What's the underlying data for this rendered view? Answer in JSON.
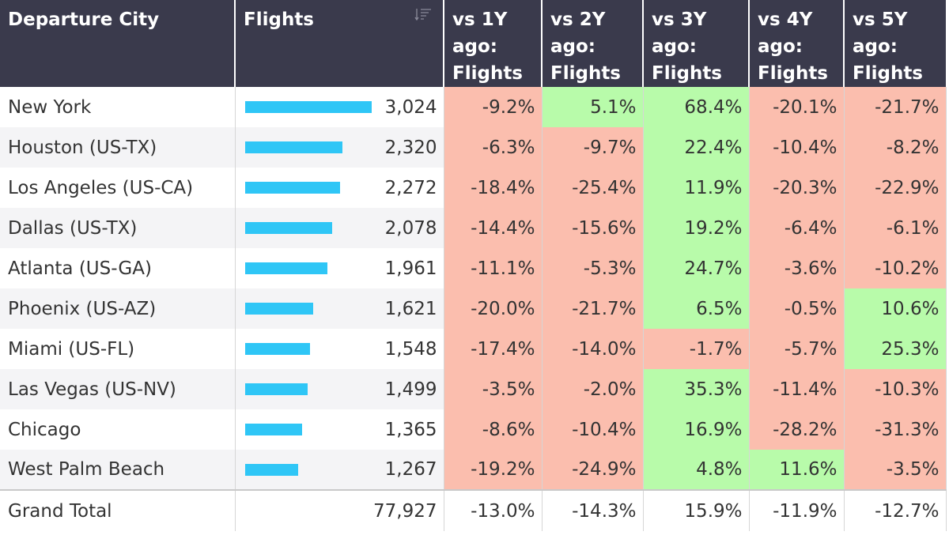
{
  "table": {
    "headers": [
      "Departure City",
      "Flights",
      "vs 1Y ago: Flights",
      "vs 2Y ago: Flights",
      "vs 3Y ago: Flights",
      "vs 4Y ago: Flights",
      "vs 5Y ago: Flights"
    ],
    "max_flights": 3024,
    "rows": [
      {
        "city": "New York",
        "flights": "3,024",
        "flights_value": 3024,
        "changes": [
          "-9.2%",
          "5.1%",
          "68.4%",
          "-20.1%",
          "-21.7%"
        ]
      },
      {
        "city": "Houston (US-TX)",
        "flights": "2,320",
        "flights_value": 2320,
        "changes": [
          "-6.3%",
          "-9.7%",
          "22.4%",
          "-10.4%",
          "-8.2%"
        ]
      },
      {
        "city": "Los Angeles (US-CA)",
        "flights": "2,272",
        "flights_value": 2272,
        "changes": [
          "-18.4%",
          "-25.4%",
          "11.9%",
          "-20.3%",
          "-22.9%"
        ]
      },
      {
        "city": "Dallas (US-TX)",
        "flights": "2,078",
        "flights_value": 2078,
        "changes": [
          "-14.4%",
          "-15.6%",
          "19.2%",
          "-6.4%",
          "-6.1%"
        ]
      },
      {
        "city": "Atlanta (US-GA)",
        "flights": "1,961",
        "flights_value": 1961,
        "changes": [
          "-11.1%",
          "-5.3%",
          "24.7%",
          "-3.6%",
          "-10.2%"
        ]
      },
      {
        "city": "Phoenix (US-AZ)",
        "flights": "1,621",
        "flights_value": 1621,
        "changes": [
          "-20.0%",
          "-21.7%",
          "6.5%",
          "-0.5%",
          "10.6%"
        ]
      },
      {
        "city": "Miami (US-FL)",
        "flights": "1,548",
        "flights_value": 1548,
        "changes": [
          "-17.4%",
          "-14.0%",
          "-1.7%",
          "-5.7%",
          "25.3%"
        ]
      },
      {
        "city": "Las Vegas (US-NV)",
        "flights": "1,499",
        "flights_value": 1499,
        "changes": [
          "-3.5%",
          "-2.0%",
          "35.3%",
          "-11.4%",
          "-10.3%"
        ]
      },
      {
        "city": "Chicago",
        "flights": "1,365",
        "flights_value": 1365,
        "changes": [
          "-8.6%",
          "-10.4%",
          "16.9%",
          "-28.2%",
          "-31.3%"
        ]
      },
      {
        "city": "West Palm Beach",
        "flights": "1,267",
        "flights_value": 1267,
        "changes": [
          "-19.2%",
          "-24.9%",
          "4.8%",
          "11.6%",
          "-3.5%"
        ]
      }
    ],
    "total": {
      "label": "Grand Total",
      "flights": "77,927",
      "changes": [
        "-13.0%",
        "-14.3%",
        "15.9%",
        "-11.9%",
        "-12.7%"
      ]
    }
  },
  "icons": {
    "sort": "sort-descending-icon"
  },
  "colors": {
    "header_bg": "#3a3a4c",
    "bar": "#2fc6f6",
    "negative_bg": "#fbbeae",
    "positive_bg": "#b8fbaa"
  }
}
